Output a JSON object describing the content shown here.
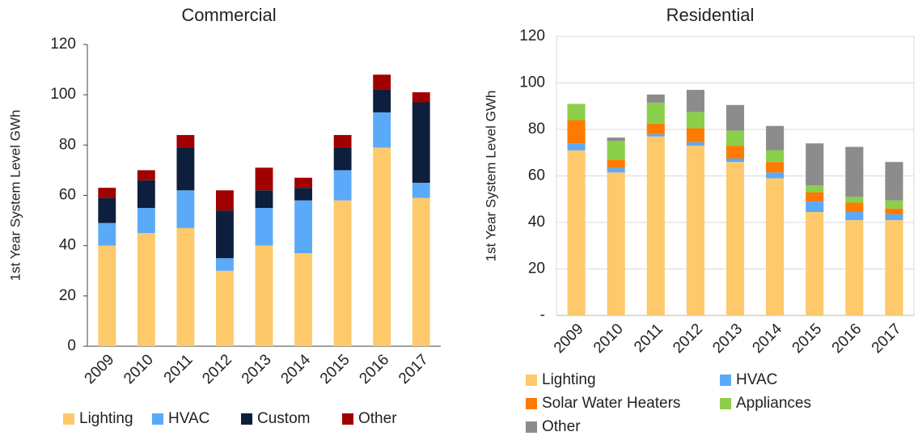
{
  "chart_data": [
    {
      "type": "stacked_bar",
      "title": "Commercial",
      "y_label": "1st Year System Level GWh",
      "categories": [
        "2009",
        "2010",
        "2011",
        "2012",
        "2013",
        "2014",
        "2015",
        "2016",
        "2017"
      ],
      "series": [
        {
          "name": "Lighting",
          "color": "#fdc96a",
          "values": [
            40,
            45,
            47,
            30,
            40,
            37,
            58,
            79,
            59
          ]
        },
        {
          "name": "HVAC",
          "color": "#5aaaf9",
          "values": [
            9,
            10,
            15,
            5,
            15,
            21,
            12,
            14,
            6
          ]
        },
        {
          "name": "Custom",
          "color": "#0d1f3c",
          "values": [
            10,
            11,
            17,
            19,
            7,
            5,
            9,
            9,
            32
          ]
        },
        {
          "name": "Other",
          "color": "#a00000",
          "values": [
            4,
            4,
            5,
            8,
            9,
            4,
            5,
            6,
            4
          ]
        }
      ],
      "ylim": [
        0,
        120
      ],
      "yticks": [
        0,
        20,
        40,
        60,
        80,
        100,
        120
      ],
      "grid": false
    },
    {
      "type": "stacked_bar",
      "title": "Residential",
      "y_label": "1st Year System Level GWh",
      "categories": [
        "2009",
        "2010",
        "2011",
        "2012",
        "2013",
        "2014",
        "2015",
        "2016",
        "2017"
      ],
      "series": [
        {
          "name": "Lighting",
          "color": "#fdc96a",
          "values": [
            71,
            61.5,
            77,
            73,
            66,
            59,
            44.5,
            41,
            41
          ]
        },
        {
          "name": "HVAC",
          "color": "#5aaaf9",
          "values": [
            3,
            2,
            1,
            1.5,
            1.5,
            2.5,
            4.5,
            3.5,
            2.5
          ]
        },
        {
          "name": "Solar Water Heaters",
          "color": "#ff7a00",
          "values": [
            10,
            3.5,
            4.5,
            6,
            5.5,
            4.5,
            4,
            4,
            2.5
          ]
        },
        {
          "name": "Appliances",
          "color": "#8ccf4a",
          "values": [
            7,
            8,
            9,
            7,
            6.5,
            5,
            3,
            2.5,
            3.5
          ]
        },
        {
          "name": "Other",
          "color": "#8c8c8c",
          "values": [
            0,
            1.5,
            3.5,
            9.5,
            11,
            10.5,
            18,
            21.5,
            16.5
          ]
        }
      ],
      "ylim": [
        0,
        120
      ],
      "yticks": [
        {
          "value": 0,
          "label": "-"
        },
        20,
        40,
        60,
        80,
        100,
        120
      ],
      "grid": true
    }
  ]
}
